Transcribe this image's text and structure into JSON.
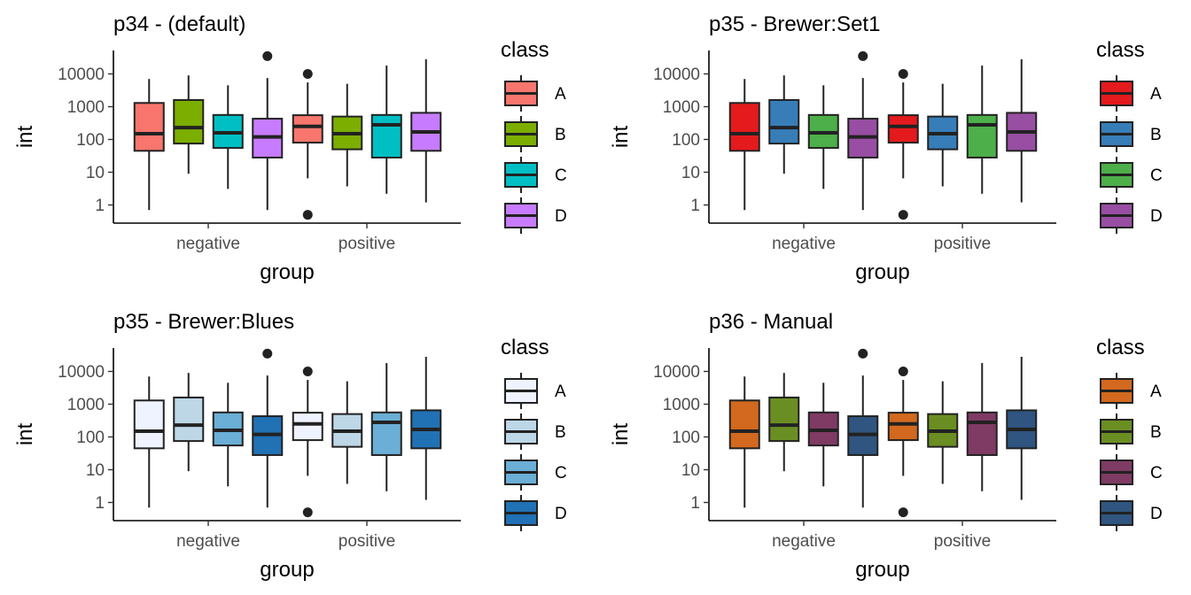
{
  "chart_data": [
    {
      "type": "boxplot",
      "title": "p34 - (default)",
      "xlabel": "group",
      "ylabel": "int",
      "y_scale": "log10",
      "y_ticks": [
        "1",
        "10",
        "100",
        "1000",
        "10000"
      ],
      "categories": [
        "negative",
        "positive"
      ],
      "legend_title": "class",
      "legend_position": "right",
      "series": [
        {
          "name": "A",
          "color": "#F8766D",
          "boxes": [
            {
              "group": "negative",
              "min": 0.7,
              "q1": 45,
              "median": 150,
              "q3": 1300,
              "max": 7000,
              "outliers": []
            },
            {
              "group": "positive",
              "min": 6.5,
              "q1": 80,
              "median": 250,
              "q3": 550,
              "max": 5500,
              "outliers": [
                10000,
                0.5
              ]
            }
          ]
        },
        {
          "name": "B",
          "color": "#7CAE00",
          "boxes": [
            {
              "group": "negative",
              "min": 9,
              "q1": 75,
              "median": 230,
              "q3": 1600,
              "max": 9000,
              "outliers": []
            },
            {
              "group": "positive",
              "min": 3.7,
              "q1": 50,
              "median": 150,
              "q3": 500,
              "max": 5000,
              "outliers": []
            }
          ]
        },
        {
          "name": "C",
          "color": "#00BFC4",
          "boxes": [
            {
              "group": "negative",
              "min": 3.1,
              "q1": 55,
              "median": 160,
              "q3": 560,
              "max": 4500,
              "outliers": []
            },
            {
              "group": "positive",
              "min": 2.2,
              "q1": 28,
              "median": 280,
              "q3": 560,
              "max": 18000,
              "outliers": []
            }
          ]
        },
        {
          "name": "D",
          "color": "#C77CFF",
          "boxes": [
            {
              "group": "negative",
              "min": 0.7,
              "q1": 28,
              "median": 120,
              "q3": 430,
              "max": 7500,
              "outliers": [
                35000
              ]
            },
            {
              "group": "positive",
              "min": 1.2,
              "q1": 45,
              "median": 170,
              "q3": 650,
              "max": 28000,
              "outliers": []
            }
          ]
        }
      ]
    },
    {
      "type": "boxplot",
      "title": "p35 - Brewer:Set1",
      "xlabel": "group",
      "ylabel": "int",
      "y_scale": "log10",
      "y_ticks": [
        "1",
        "10",
        "100",
        "1000",
        "10000"
      ],
      "categories": [
        "negative",
        "positive"
      ],
      "legend_title": "class",
      "legend_position": "right",
      "series": [
        {
          "name": "A",
          "color": "#E41A1C",
          "boxes": [
            {
              "group": "negative",
              "min": 0.7,
              "q1": 45,
              "median": 150,
              "q3": 1300,
              "max": 7000,
              "outliers": []
            },
            {
              "group": "positive",
              "min": 6.5,
              "q1": 80,
              "median": 250,
              "q3": 550,
              "max": 5500,
              "outliers": [
                10000,
                0.5
              ]
            }
          ]
        },
        {
          "name": "B",
          "color": "#377EB8",
          "boxes": [
            {
              "group": "negative",
              "min": 9,
              "q1": 75,
              "median": 230,
              "q3": 1600,
              "max": 9000,
              "outliers": []
            },
            {
              "group": "positive",
              "min": 3.7,
              "q1": 50,
              "median": 150,
              "q3": 500,
              "max": 5000,
              "outliers": []
            }
          ]
        },
        {
          "name": "C",
          "color": "#4DAF4A",
          "boxes": [
            {
              "group": "negative",
              "min": 3.1,
              "q1": 55,
              "median": 160,
              "q3": 560,
              "max": 4500,
              "outliers": []
            },
            {
              "group": "positive",
              "min": 2.2,
              "q1": 28,
              "median": 280,
              "q3": 560,
              "max": 18000,
              "outliers": []
            }
          ]
        },
        {
          "name": "D",
          "color": "#984EA3",
          "boxes": [
            {
              "group": "negative",
              "min": 0.7,
              "q1": 28,
              "median": 120,
              "q3": 430,
              "max": 7500,
              "outliers": [
                35000
              ]
            },
            {
              "group": "positive",
              "min": 1.2,
              "q1": 45,
              "median": 170,
              "q3": 650,
              "max": 28000,
              "outliers": []
            }
          ]
        }
      ]
    },
    {
      "type": "boxplot",
      "title": "p35 - Brewer:Blues",
      "xlabel": "group",
      "ylabel": "int",
      "y_scale": "log10",
      "y_ticks": [
        "1",
        "10",
        "100",
        "1000",
        "10000"
      ],
      "categories": [
        "negative",
        "positive"
      ],
      "legend_title": "class",
      "legend_position": "right",
      "series": [
        {
          "name": "A",
          "color": "#EFF3FF",
          "boxes": [
            {
              "group": "negative",
              "min": 0.7,
              "q1": 45,
              "median": 150,
              "q3": 1300,
              "max": 7000,
              "outliers": []
            },
            {
              "group": "positive",
              "min": 6.5,
              "q1": 80,
              "median": 250,
              "q3": 550,
              "max": 5500,
              "outliers": [
                10000,
                0.5
              ]
            }
          ]
        },
        {
          "name": "B",
          "color": "#BDD7E7",
          "boxes": [
            {
              "group": "negative",
              "min": 9,
              "q1": 75,
              "median": 230,
              "q3": 1600,
              "max": 9000,
              "outliers": []
            },
            {
              "group": "positive",
              "min": 3.7,
              "q1": 50,
              "median": 150,
              "q3": 500,
              "max": 5000,
              "outliers": []
            }
          ]
        },
        {
          "name": "C",
          "color": "#6BAED6",
          "boxes": [
            {
              "group": "negative",
              "min": 3.1,
              "q1": 55,
              "median": 160,
              "q3": 560,
              "max": 4500,
              "outliers": []
            },
            {
              "group": "positive",
              "min": 2.2,
              "q1": 28,
              "median": 280,
              "q3": 560,
              "max": 18000,
              "outliers": []
            }
          ]
        },
        {
          "name": "D",
          "color": "#2171B5",
          "boxes": [
            {
              "group": "negative",
              "min": 0.7,
              "q1": 28,
              "median": 120,
              "q3": 430,
              "max": 7500,
              "outliers": [
                35000
              ]
            },
            {
              "group": "positive",
              "min": 1.2,
              "q1": 45,
              "median": 170,
              "q3": 650,
              "max": 28000,
              "outliers": []
            }
          ]
        }
      ]
    },
    {
      "type": "boxplot",
      "title": "p36 - Manual",
      "xlabel": "group",
      "ylabel": "int",
      "y_scale": "log10",
      "y_ticks": [
        "1",
        "10",
        "100",
        "1000",
        "10000"
      ],
      "categories": [
        "negative",
        "positive"
      ],
      "legend_title": "class",
      "legend_position": "right",
      "series": [
        {
          "name": "A",
          "color": "#D2691E",
          "boxes": [
            {
              "group": "negative",
              "min": 0.7,
              "q1": 45,
              "median": 150,
              "q3": 1300,
              "max": 7000,
              "outliers": []
            },
            {
              "group": "positive",
              "min": 6.5,
              "q1": 80,
              "median": 250,
              "q3": 550,
              "max": 5500,
              "outliers": [
                10000,
                0.5
              ]
            }
          ]
        },
        {
          "name": "B",
          "color": "#6B8E23",
          "boxes": [
            {
              "group": "negative",
              "min": 9,
              "q1": 75,
              "median": 230,
              "q3": 1600,
              "max": 9000,
              "outliers": []
            },
            {
              "group": "positive",
              "min": 3.7,
              "q1": 50,
              "median": 150,
              "q3": 500,
              "max": 5000,
              "outliers": []
            }
          ]
        },
        {
          "name": "C",
          "color": "#7F3B63",
          "boxes": [
            {
              "group": "negative",
              "min": 3.1,
              "q1": 55,
              "median": 160,
              "q3": 560,
              "max": 4500,
              "outliers": []
            },
            {
              "group": "positive",
              "min": 2.2,
              "q1": 28,
              "median": 280,
              "q3": 560,
              "max": 18000,
              "outliers": []
            }
          ]
        },
        {
          "name": "D",
          "color": "#2F5580",
          "boxes": [
            {
              "group": "negative",
              "min": 0.7,
              "q1": 28,
              "median": 120,
              "q3": 430,
              "max": 7500,
              "outliers": [
                35000
              ]
            },
            {
              "group": "positive",
              "min": 1.2,
              "q1": 45,
              "median": 170,
              "q3": 650,
              "max": 28000,
              "outliers": []
            }
          ]
        }
      ]
    }
  ]
}
